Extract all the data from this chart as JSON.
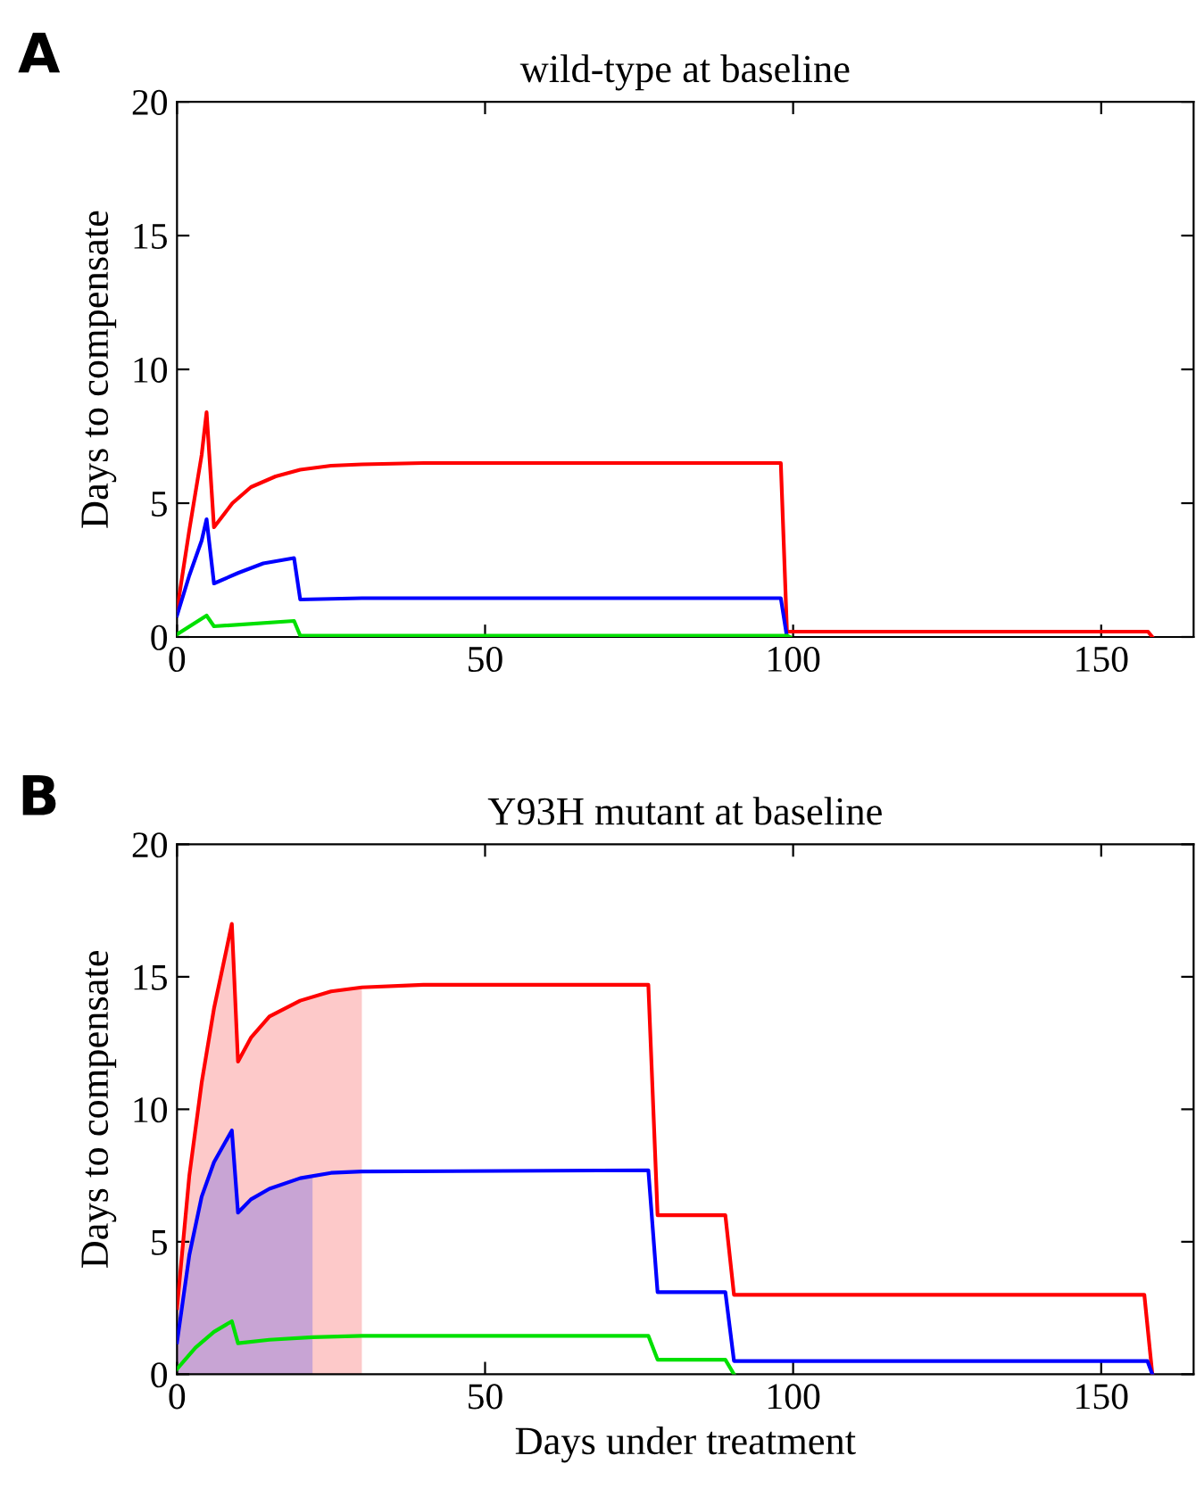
{
  "chart_data": [
    {
      "type": "line",
      "title": "wild-type at baseline",
      "ylabel": "Days to compensate",
      "annotations": [
        "A"
      ],
      "xlim": [
        0,
        165
      ],
      "xticks": [
        0,
        50,
        100,
        150
      ],
      "ylim": [
        0,
        20
      ],
      "yticks": [
        0,
        5,
        10,
        15,
        20
      ],
      "grid": false,
      "marker": "none",
      "line_style": "solid",
      "series": [
        {
          "color": "#ff0000",
          "x": [
            0,
            2,
            4,
            4.8,
            6,
            9,
            12,
            16,
            20,
            25,
            30,
            40,
            98,
            99,
            157.6,
            158.3
          ],
          "values": [
            1.0,
            4.0,
            6.8,
            8.4,
            4.1,
            5.0,
            5.6,
            6.0,
            6.25,
            6.4,
            6.45,
            6.5,
            6.5,
            0.2,
            0.2,
            0
          ]
        },
        {
          "color": "#0000ff",
          "x": [
            0,
            2,
            4,
            4.8,
            6,
            10,
            14,
            19,
            20,
            30,
            98,
            99
          ],
          "values": [
            0.8,
            2.3,
            3.6,
            4.4,
            2.0,
            2.4,
            2.75,
            2.95,
            1.4,
            1.45,
            1.45,
            0
          ]
        },
        {
          "color": "#00e000",
          "x": [
            0,
            4.8,
            6,
            19,
            20,
            99,
            99.5
          ],
          "values": [
            0.1,
            0.8,
            0.4,
            0.6,
            0.05,
            0.05,
            0
          ]
        }
      ]
    },
    {
      "type": "line",
      "title": "Y93H mutant at baseline",
      "xlabel": "Days under treatment",
      "ylabel": "Days to compensate",
      "annotations": [
        "B"
      ],
      "xlim": [
        0,
        165
      ],
      "xticks": [
        0,
        50,
        100,
        150
      ],
      "ylim": [
        0,
        20
      ],
      "yticks": [
        0,
        5,
        10,
        15,
        20
      ],
      "grid": false,
      "marker": "none",
      "line_style": "solid",
      "series": [
        {
          "type": "area",
          "color": "#fdc9c9",
          "x": [
            0,
            2,
            4,
            6,
            8,
            8.9,
            9.9,
            12,
            15,
            20,
            25,
            30
          ],
          "values": [
            2.5,
            7.5,
            11,
            13.8,
            16,
            17,
            11.8,
            12.7,
            13.5,
            14.1,
            14.45,
            14.6
          ]
        },
        {
          "type": "area",
          "color": "#c8a4d4",
          "x": [
            0,
            2,
            4,
            6,
            8.9,
            9.9,
            12,
            15,
            20,
            22
          ],
          "values": [
            1.2,
            4.5,
            6.7,
            8.0,
            9.2,
            6.1,
            6.6,
            7.0,
            7.4,
            7.5
          ]
        },
        {
          "color": "#ff0000",
          "x": [
            0,
            2,
            4,
            6,
            8,
            8.9,
            9.9,
            12,
            15,
            20,
            25,
            30,
            40,
            76.5,
            78,
            89,
            90.4,
            157,
            158.3
          ],
          "values": [
            2.5,
            7.5,
            11,
            13.8,
            16,
            17,
            11.8,
            12.7,
            13.5,
            14.1,
            14.45,
            14.6,
            14.7,
            14.7,
            6.0,
            6.0,
            3.0,
            3.0,
            0
          ]
        },
        {
          "color": "#0000ff",
          "x": [
            0,
            2,
            4,
            6,
            8.9,
            9.9,
            12,
            15,
            20,
            25,
            30,
            76.5,
            78,
            89,
            90.4,
            157.5,
            158.3
          ],
          "values": [
            1.2,
            4.5,
            6.7,
            8.0,
            9.2,
            6.1,
            6.6,
            7.0,
            7.4,
            7.6,
            7.65,
            7.7,
            3.1,
            3.1,
            0.5,
            0.5,
            0
          ]
        },
        {
          "color": "#00e000",
          "x": [
            0,
            3,
            6,
            8.9,
            9.9,
            15,
            22,
            30,
            76.5,
            78,
            89,
            90.4
          ],
          "values": [
            0.2,
            1.0,
            1.6,
            2.0,
            1.17,
            1.3,
            1.4,
            1.45,
            1.45,
            0.55,
            0.55,
            0
          ]
        }
      ]
    }
  ]
}
